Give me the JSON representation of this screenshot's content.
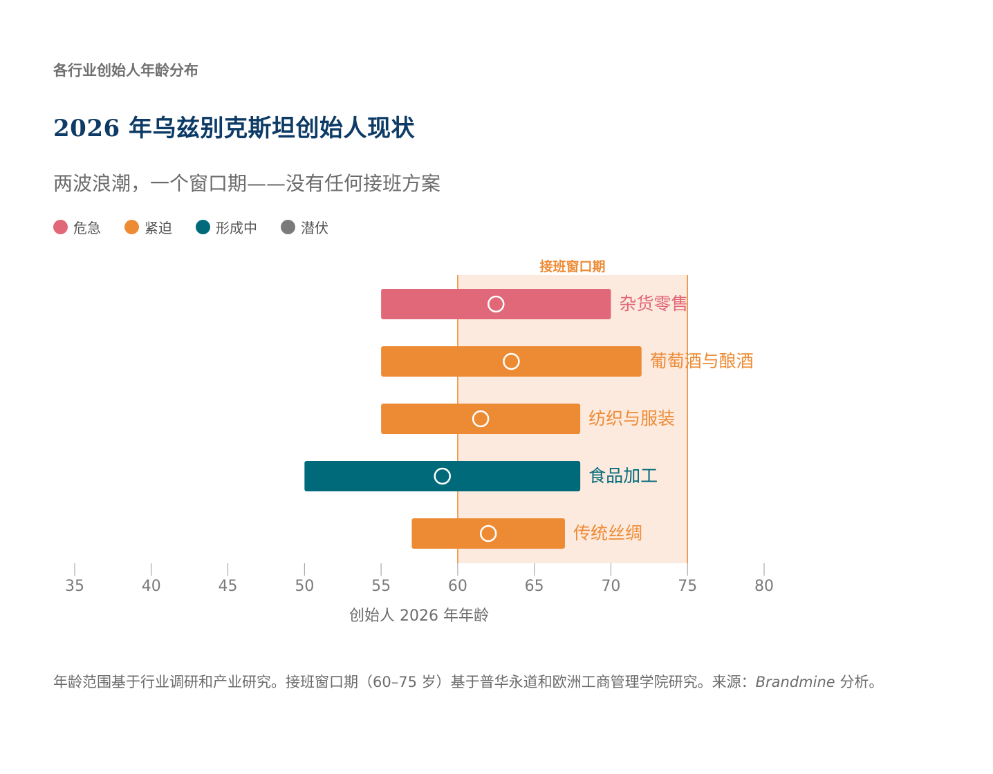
{
  "header": {
    "kicker": "各行业创始人年龄分布",
    "title": "2026 年乌兹别克斯坦创始人现状",
    "subtitle": "两波浪潮，一个窗口期——没有任何接班方案"
  },
  "legend": [
    {
      "label": "危急",
      "color": "#e06878"
    },
    {
      "label": "紧迫",
      "color": "#ed8b35"
    },
    {
      "label": "形成中",
      "color": "#006a7a"
    },
    {
      "label": "潜伏",
      "color": "#7a7a7a"
    }
  ],
  "chart_data": {
    "type": "range-bar",
    "xlabel": "创始人 2026 年年龄",
    "xlim": [
      35,
      80
    ],
    "xticks": [
      35,
      40,
      45,
      50,
      55,
      60,
      65,
      70,
      75,
      80
    ],
    "window": {
      "label": "接班窗口期",
      "start": 60,
      "end": 75,
      "color": "#ed8b35",
      "fill": "#fdeade"
    },
    "series": [
      {
        "name": "杂货零售",
        "start": 55,
        "end": 70,
        "marker": 62.5,
        "color": "#e06878"
      },
      {
        "name": "葡萄酒与酿酒",
        "start": 55,
        "end": 72,
        "marker": 63.5,
        "color": "#ed8b35"
      },
      {
        "name": "纺织与服装",
        "start": 55,
        "end": 68,
        "marker": 61.5,
        "color": "#ed8b35"
      },
      {
        "name": "食品加工",
        "start": 50,
        "end": 68,
        "marker": 59,
        "color": "#006a7a"
      },
      {
        "name": "传统丝绸",
        "start": 57,
        "end": 67,
        "marker": 62,
        "color": "#ed8b35"
      }
    ]
  },
  "footnote": {
    "text": "年龄范围基于行业调研和产业研究。接班窗口期（60–75 岁）基于普华永道和欧洲工商管理学院研究。来源：",
    "source": "Brandmine",
    "suffix": " 分析。"
  }
}
